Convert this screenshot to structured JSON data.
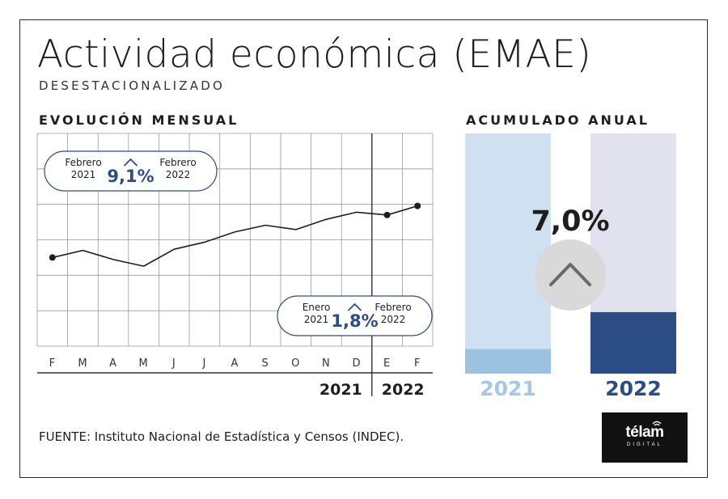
{
  "title": "Actividad económica (EMAE)",
  "subtitle": "DESESTACIONALIZADO",
  "section_monthly": "EVOLUCIÓN MENSUAL",
  "section_annual": "ACUMULADO ANUAL",
  "source": "FUENTE: Instituto Nacional de Estadística y Censos (INDEC).",
  "logo": {
    "name": "télam",
    "sub": "DIGITAL"
  },
  "colors": {
    "light_blue": "#cfe1f0",
    "mid_blue": "#9cc2e2",
    "lavender": "#e1e2ee",
    "dark_blue": "#2c4d84",
    "label_2021": "#a7c7e3",
    "label_2022": "#2c4d84",
    "callout_text": "#2c4d84"
  },
  "chart_data": [
    {
      "type": "line",
      "x": [
        "F",
        "M",
        "A",
        "M",
        "J",
        "J",
        "A",
        "S",
        "O",
        "N",
        "D",
        "E",
        "F"
      ],
      "years": [
        "2021",
        "2022"
      ],
      "values": [
        142.5,
        144.3,
        142.0,
        140.3,
        144.6,
        146.4,
        149.0,
        150.7,
        149.6,
        152.2,
        154.0,
        153.3,
        155.6
      ],
      "ylim": [
        120,
        174
      ],
      "markers": [
        0,
        11,
        12
      ],
      "grid": true,
      "callouts": [
        {
          "line1_left": "Febrero",
          "line2_left": "2021",
          "value": "9,1%",
          "line1_right": "Febrero",
          "line2_right": "2022",
          "direction": "up"
        },
        {
          "line1_left": "Enero",
          "line2_left": "2021",
          "value": "1,8%",
          "line1_right": "Febrero",
          "line2_right": "2022",
          "direction": "up"
        }
      ]
    },
    {
      "type": "bar",
      "categories": [
        "2021",
        "2022"
      ],
      "values": [
        10.2,
        25.6
      ],
      "ylim": [
        0,
        100
      ],
      "change_label": "7,0%",
      "direction": "up"
    }
  ]
}
